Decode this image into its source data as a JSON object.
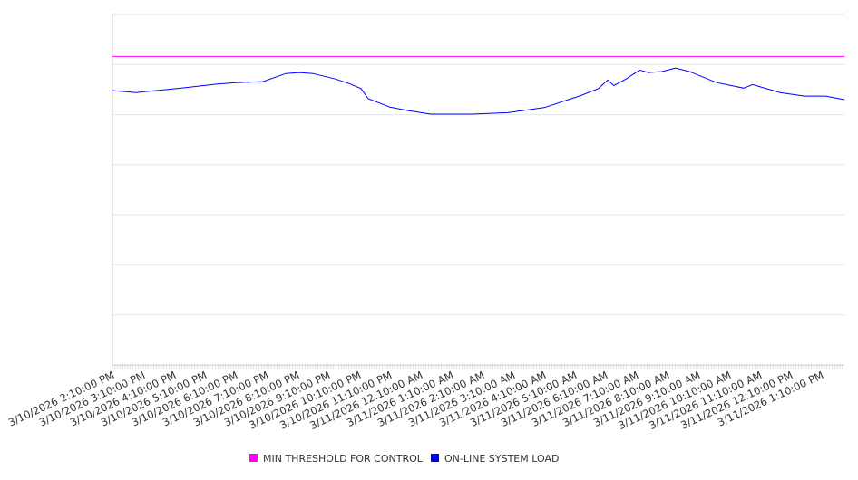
{
  "chart_data": {
    "type": "line",
    "title": "",
    "xlabel": "",
    "ylabel": "",
    "y_tick_labels_shown": false,
    "ylim": [
      0,
      7
    ],
    "x_unit": "hours since 3/10/2026 2:10:00 PM",
    "xlim": [
      0,
      23.74
    ],
    "grid": true,
    "legend_position": "bottom-center",
    "x_tick_labels": [
      "3/10/2026 2:10:00 PM",
      "3/10/2026 3:10:00 PM",
      "3/10/2026 4:10:00 PM",
      "3/10/2026 5:10:00 PM",
      "3/10/2026 6:10:00 PM",
      "3/10/2026 7:10:00 PM",
      "3/10/2026 8:10:00 PM",
      "3/10/2026 9:10:00 PM",
      "3/10/2026 10:10:00 PM",
      "3/10/2026 11:10:00 PM",
      "3/11/2026 12:10:00 AM",
      "3/11/2026 1:10:00 AM",
      "3/11/2026 2:10:00 AM",
      "3/11/2026 3:10:00 AM",
      "3/11/2026 4:10:00 AM",
      "3/11/2026 5:10:00 AM",
      "3/11/2026 6:10:00 AM",
      "3/11/2026 7:10:00 AM",
      "3/11/2026 8:10:00 AM",
      "3/11/2026 9:10:00 AM",
      "3/11/2026 10:10:00 AM",
      "3/11/2026 11:10:00 AM",
      "3/11/2026 12:10:00 PM",
      "3/11/2026 1:10:00 PM"
    ],
    "series": [
      {
        "name": "MIN THRESHOLD FOR CONTROL",
        "color": "#ff00ff",
        "x": [
          0,
          23.74
        ],
        "values": [
          6.16,
          6.16
        ]
      },
      {
        "name": "ON-LINE SYSTEM LOAD",
        "color": "#0000ff",
        "x": [
          0,
          0.76,
          2.24,
          3.41,
          4,
          4.88,
          5.62,
          6.06,
          6.5,
          7.24,
          7.68,
          8.06,
          8.29,
          9,
          9.59,
          10.32,
          11.65,
          12.82,
          14,
          15.18,
          15.76,
          16.06,
          16.26,
          16.65,
          17.09,
          17.38,
          17.82,
          18.26,
          18.71,
          19.59,
          20.47,
          20.76,
          21.65,
          22.44,
          23.12,
          23.74
        ],
        "values": [
          5.48,
          5.44,
          5.53,
          5.61,
          5.64,
          5.66,
          5.82,
          5.84,
          5.82,
          5.71,
          5.62,
          5.52,
          5.32,
          5.15,
          5.08,
          5.01,
          5.01,
          5.04,
          5.14,
          5.38,
          5.52,
          5.69,
          5.58,
          5.71,
          5.89,
          5.84,
          5.86,
          5.93,
          5.86,
          5.64,
          5.53,
          5.6,
          5.44,
          5.37,
          5.37,
          5.3
        ]
      }
    ]
  }
}
